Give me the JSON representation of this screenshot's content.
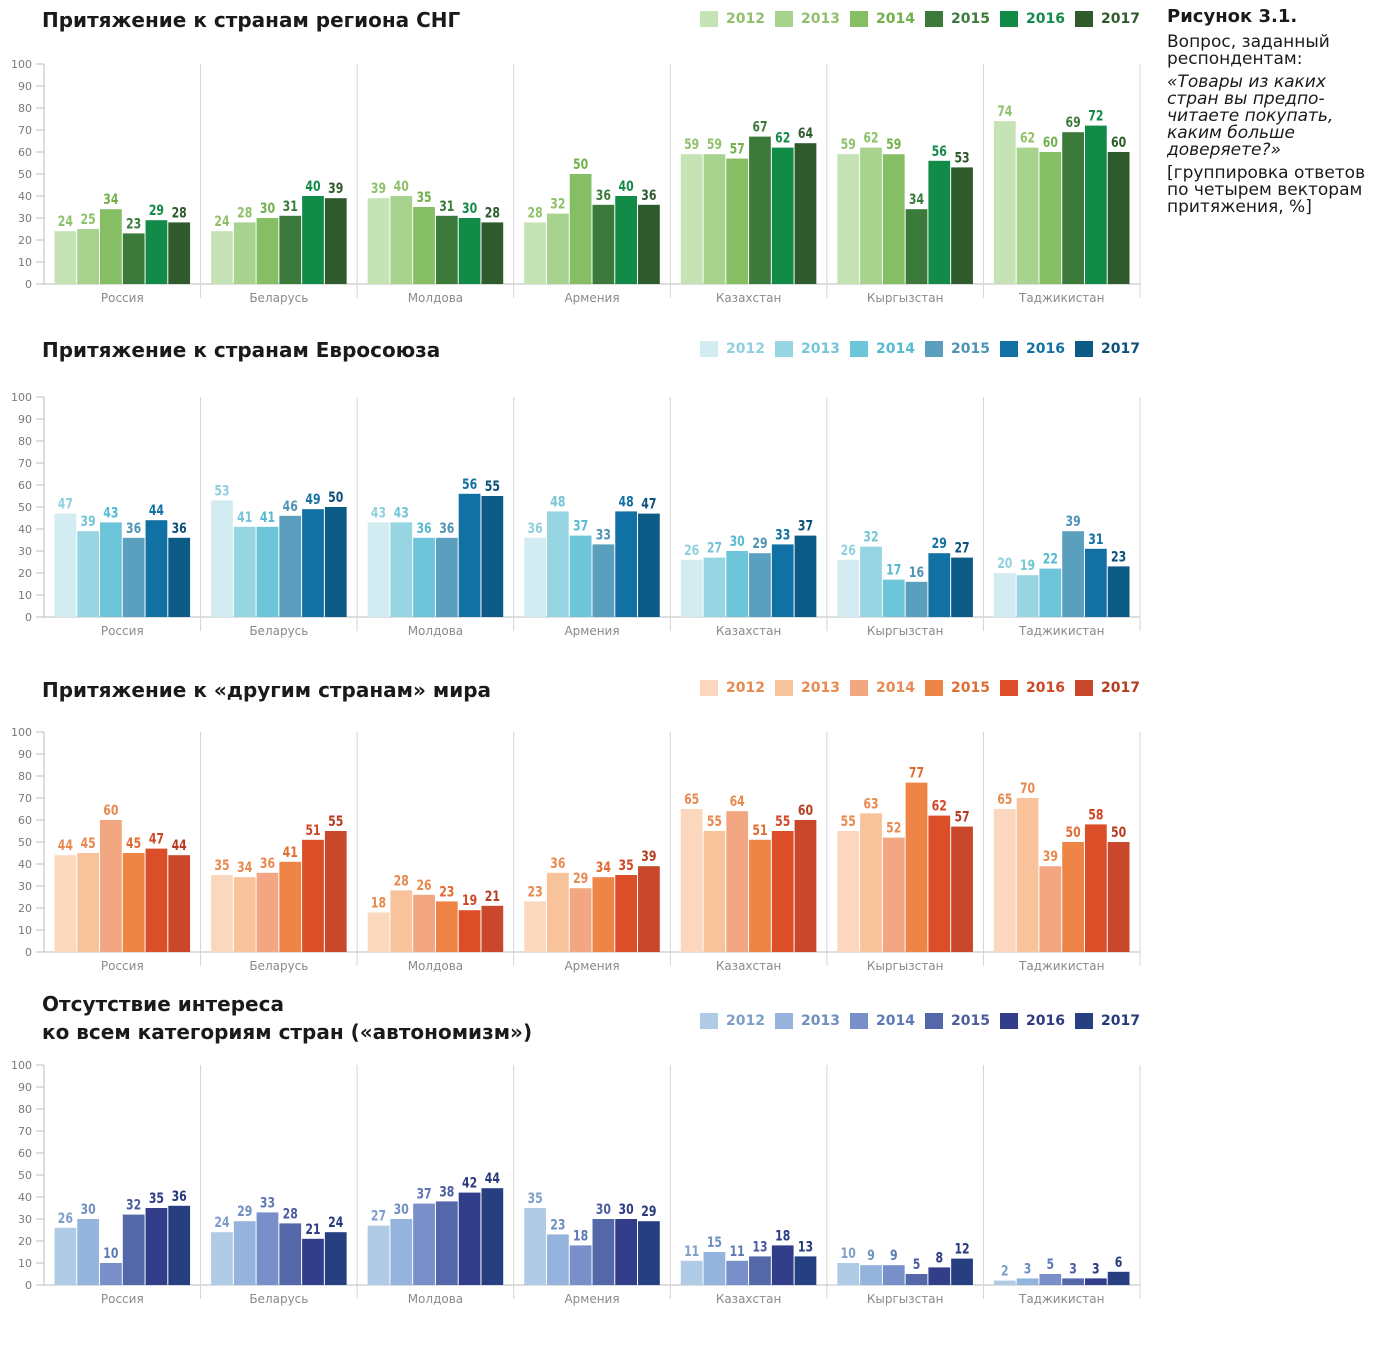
{
  "side": {
    "figure_label": "Рисунок 3.1.",
    "question_label": "Вопрос, заданный респондентам:",
    "question_text": "«Товары из каких стран вы предпо-читаете покупать, каким больше доверяете?»",
    "note": "[группировка ответов по четырем векторам притяжения, %]"
  },
  "chart_data": [
    {
      "type": "bar",
      "title": "Притяжение к странам региона СНГ",
      "categories": [
        "Россия",
        "Беларусь",
        "Молдова",
        "Армения",
        "Казахстан",
        "Кыргызстан",
        "Таджикистан"
      ],
      "ylim": [
        0,
        100
      ],
      "yticks": [
        0,
        10,
        20,
        30,
        40,
        50,
        60,
        70,
        80,
        90,
        100
      ],
      "legend_position": "top-right",
      "series": [
        {
          "name": "2012",
          "color": "#c5e3b4",
          "label_color": "#8fc16c",
          "values": [
            24,
            24,
            39,
            28,
            59,
            59,
            74
          ]
        },
        {
          "name": "2013",
          "color": "#a7d38f",
          "label_color": "#8fc16c",
          "values": [
            25,
            28,
            40,
            32,
            59,
            62,
            62
          ]
        },
        {
          "name": "2014",
          "color": "#86be63",
          "label_color": "#72b04a",
          "values": [
            34,
            30,
            35,
            50,
            57,
            59,
            60
          ]
        },
        {
          "name": "2015",
          "color": "#3c7a3c",
          "label_color": "#3c7a3c",
          "values": [
            23,
            31,
            31,
            36,
            67,
            34,
            69
          ]
        },
        {
          "name": "2016",
          "color": "#128a48",
          "label_color": "#128a48",
          "values": [
            29,
            40,
            30,
            40,
            62,
            56,
            72
          ]
        },
        {
          "name": "2017",
          "color": "#2e5a2c",
          "label_color": "#2e5a2c",
          "values": [
            28,
            39,
            28,
            36,
            64,
            53,
            60
          ]
        }
      ]
    },
    {
      "type": "bar",
      "title": "Притяжение к странам Евросоюза",
      "categories": [
        "Россия",
        "Беларусь",
        "Молдова",
        "Армения",
        "Казахстан",
        "Кыргызстан",
        "Таджикистан"
      ],
      "ylim": [
        0,
        100
      ],
      "yticks": [
        0,
        10,
        20,
        30,
        40,
        50,
        60,
        70,
        80,
        90,
        100
      ],
      "legend_position": "top-right",
      "series": [
        {
          "name": "2012",
          "color": "#d3ecf1",
          "label_color": "#8fd0de",
          "values": [
            47,
            53,
            43,
            36,
            26,
            26,
            20
          ]
        },
        {
          "name": "2013",
          "color": "#98d5e2",
          "label_color": "#74c6d7",
          "values": [
            39,
            41,
            43,
            48,
            27,
            32,
            19
          ]
        },
        {
          "name": "2014",
          "color": "#6cc5d8",
          "label_color": "#56bad0",
          "values": [
            43,
            41,
            36,
            37,
            30,
            17,
            22
          ]
        },
        {
          "name": "2015",
          "color": "#5b9fbf",
          "label_color": "#4e93b6",
          "values": [
            36,
            46,
            36,
            33,
            29,
            16,
            39
          ]
        },
        {
          "name": "2016",
          "color": "#1170a4",
          "label_color": "#1170a4",
          "values": [
            44,
            49,
            56,
            48,
            33,
            29,
            31
          ]
        },
        {
          "name": "2017",
          "color": "#0c5a86",
          "label_color": "#0c4f7a",
          "values": [
            36,
            50,
            55,
            47,
            37,
            27,
            23
          ]
        }
      ]
    },
    {
      "type": "bar",
      "title": "Притяжение к «другим странам» мира",
      "categories": [
        "Россия",
        "Беларусь",
        "Молдова",
        "Армения",
        "Казахстан",
        "Кыргызстан",
        "Таджикистан"
      ],
      "ylim": [
        0,
        100
      ],
      "yticks": [
        0,
        10,
        20,
        30,
        40,
        50,
        60,
        70,
        80,
        90,
        100
      ],
      "legend_position": "top-right",
      "series": [
        {
          "name": "2012",
          "color": "#fbd8bd",
          "label_color": "#e8894f",
          "values": [
            44,
            35,
            18,
            23,
            65,
            55,
            65
          ]
        },
        {
          "name": "2013",
          "color": "#f8c29b",
          "label_color": "#e8894f",
          "values": [
            45,
            34,
            28,
            36,
            55,
            63,
            70
          ]
        },
        {
          "name": "2014",
          "color": "#f3a682",
          "label_color": "#e8894f",
          "values": [
            60,
            36,
            26,
            29,
            64,
            52,
            39
          ]
        },
        {
          "name": "2015",
          "color": "#ee8446",
          "label_color": "#e06c32",
          "values": [
            45,
            41,
            23,
            34,
            51,
            77,
            50
          ]
        },
        {
          "name": "2016",
          "color": "#dc4e27",
          "label_color": "#d14624",
          "values": [
            47,
            51,
            19,
            35,
            55,
            62,
            58
          ]
        },
        {
          "name": "2017",
          "color": "#c9472a",
          "label_color": "#b53c20",
          "values": [
            44,
            55,
            21,
            39,
            60,
            57,
            50
          ]
        }
      ]
    },
    {
      "type": "bar",
      "title_lines": [
        "Отсутствие интереса",
        "ко всем категориям стран («автономизм»)"
      ],
      "categories": [
        "Россия",
        "Беларусь",
        "Молдова",
        "Армения",
        "Казахстан",
        "Кыргызстан",
        "Таджикистан"
      ],
      "ylim": [
        0,
        100
      ],
      "yticks": [
        0,
        10,
        20,
        30,
        40,
        50,
        60,
        70,
        80,
        90,
        100
      ],
      "legend_position": "top-right",
      "series": [
        {
          "name": "2012",
          "color": "#b0cbe6",
          "label_color": "#7d9ec9",
          "values": [
            26,
            24,
            27,
            35,
            11,
            10,
            2
          ]
        },
        {
          "name": "2013",
          "color": "#94b4de",
          "label_color": "#6f8fc0",
          "values": [
            30,
            29,
            30,
            23,
            15,
            9,
            3
          ]
        },
        {
          "name": "2014",
          "color": "#788fca",
          "label_color": "#5e77b5",
          "values": [
            10,
            33,
            37,
            18,
            11,
            9,
            5
          ]
        },
        {
          "name": "2015",
          "color": "#5468a9",
          "label_color": "#4c5d9f",
          "values": [
            32,
            28,
            38,
            30,
            13,
            5,
            3
          ]
        },
        {
          "name": "2016",
          "color": "#323e89",
          "label_color": "#2e3a84",
          "values": [
            35,
            21,
            42,
            30,
            18,
            8,
            3
          ]
        },
        {
          "name": "2017",
          "color": "#253f80",
          "label_color": "#253a7a",
          "values": [
            36,
            24,
            44,
            29,
            13,
            12,
            6
          ]
        }
      ]
    }
  ]
}
